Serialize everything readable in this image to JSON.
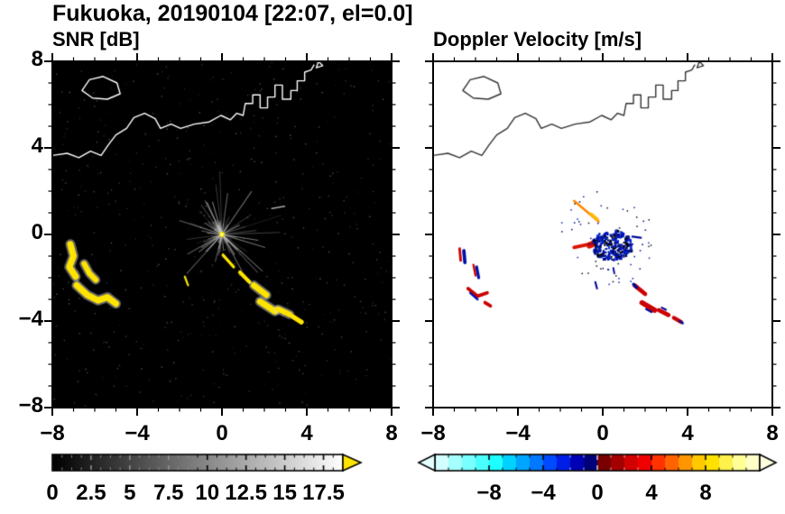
{
  "title": "Fukuoka, 20190104 [22:07, el=0.0]",
  "coastline": {
    "paths": [
      {
        "closed": true,
        "pts": [
          [
            -6.6,
            6.65
          ],
          [
            -6.25,
            7.15
          ],
          [
            -5.6,
            7.3
          ],
          [
            -4.95,
            7.0
          ],
          [
            -4.8,
            6.5
          ],
          [
            -5.4,
            6.25
          ],
          [
            -6.1,
            6.3
          ]
        ]
      },
      {
        "closed": false,
        "pts": [
          [
            -8,
            3.65
          ],
          [
            -7.3,
            3.75
          ],
          [
            -6.75,
            3.55
          ],
          [
            -6.2,
            3.85
          ],
          [
            -5.7,
            3.65
          ],
          [
            -5.35,
            4.15
          ],
          [
            -5.0,
            4.6
          ],
          [
            -4.5,
            4.9
          ],
          [
            -4.15,
            5.4
          ],
          [
            -3.65,
            5.6
          ],
          [
            -3.15,
            5.35
          ],
          [
            -2.9,
            4.9
          ],
          [
            -2.4,
            5.1
          ],
          [
            -1.95,
            4.9
          ],
          [
            -1.3,
            5.1
          ],
          [
            -0.6,
            5.2
          ],
          [
            -0.05,
            5.5
          ],
          [
            0.4,
            5.3
          ],
          [
            0.7,
            5.6
          ],
          [
            1.0,
            5.5
          ],
          [
            1.1,
            6.05
          ],
          [
            1.45,
            6.05
          ],
          [
            1.45,
            6.45
          ],
          [
            1.8,
            6.45
          ],
          [
            1.8,
            5.85
          ],
          [
            2.15,
            5.85
          ],
          [
            2.15,
            6.35
          ],
          [
            2.5,
            6.35
          ],
          [
            2.5,
            6.9
          ],
          [
            2.85,
            6.9
          ],
          [
            2.85,
            6.25
          ],
          [
            3.25,
            6.25
          ],
          [
            3.25,
            6.65
          ],
          [
            3.55,
            6.65
          ],
          [
            3.55,
            7.1
          ],
          [
            3.9,
            7.1
          ],
          [
            3.9,
            7.5
          ],
          [
            4.2,
            7.6
          ],
          [
            4.35,
            7.85
          ]
        ]
      },
      {
        "closed": true,
        "pts": [
          [
            4.45,
            7.7
          ],
          [
            4.75,
            7.8
          ],
          [
            4.55,
            8.0
          ]
        ]
      }
    ]
  },
  "chart_data": [
    {
      "type": "heatmap",
      "title": "SNR [dB]",
      "xlabel": "",
      "ylabel": "",
      "xlim": [
        -8,
        8
      ],
      "ylim": [
        -8,
        8
      ],
      "tick_values": [
        -8,
        -4,
        0,
        4,
        8
      ],
      "xticks": [
        "−8",
        "−4",
        "0",
        "4",
        "8"
      ],
      "y_labels_shown": true,
      "minor_tick_step": 1,
      "background": "#000000",
      "coast_color": "#ffffff",
      "noise": {
        "count": 520,
        "color": "#565656"
      },
      "spokes": {
        "center": [
          0,
          0
        ],
        "count": 85,
        "min_len": 0.4,
        "max_len": 3.1,
        "color": "#c8c8c8"
      },
      "center_dot": {
        "xy": [
          0,
          0
        ],
        "color": "#ffee00"
      },
      "echoes": [
        {
          "pts": [
            [
              -7.15,
              -0.45
            ],
            [
              -7.0,
              -1.0
            ],
            [
              -7.2,
              -1.5
            ],
            [
              -6.9,
              -1.95
            ]
          ],
          "w": 0.3,
          "color": "#ffe400",
          "halo": 1
        },
        {
          "pts": [
            [
              -6.5,
              -1.35
            ],
            [
              -6.25,
              -1.8
            ],
            [
              -5.95,
              -2.1
            ]
          ],
          "w": 0.26,
          "color": "#ffe400",
          "halo": 1
        },
        {
          "pts": [
            [
              -6.85,
              -2.35
            ],
            [
              -6.35,
              -2.8
            ],
            [
              -5.85,
              -3.05
            ],
            [
              -5.4,
              -2.9
            ],
            [
              -5.0,
              -3.2
            ]
          ],
          "w": 0.3,
          "color": "#ffe400",
          "halo": 1
        },
        {
          "pts": [
            [
              -1.75,
              -1.95
            ],
            [
              -1.6,
              -2.35
            ]
          ],
          "w": 0.1,
          "color": "#f0e000"
        },
        {
          "pts": [
            [
              0.05,
              -0.95
            ],
            [
              0.55,
              -1.5
            ]
          ],
          "w": 0.14,
          "color": "#ffe400"
        },
        {
          "pts": [
            [
              0.85,
              -1.75
            ],
            [
              1.3,
              -2.2
            ]
          ],
          "w": 0.18,
          "color": "#ffe400"
        },
        {
          "pts": [
            [
              1.5,
              -2.35
            ],
            [
              2.1,
              -2.8
            ]
          ],
          "w": 0.28,
          "color": "#ffe400",
          "halo": 1
        },
        {
          "pts": [
            [
              1.8,
              -3.1
            ],
            [
              2.5,
              -3.55
            ]
          ],
          "w": 0.3,
          "color": "#ffe400",
          "halo": 1
        },
        {
          "pts": [
            [
              2.65,
              -3.45
            ],
            [
              3.2,
              -3.7
            ]
          ],
          "w": 0.26,
          "color": "#ffe400",
          "halo": 1
        },
        {
          "pts": [
            [
              3.35,
              -3.8
            ],
            [
              3.75,
              -4.05
            ]
          ],
          "w": 0.22,
          "color": "#ffe400"
        },
        {
          "pts": [
            [
              2.35,
              1.2
            ],
            [
              2.95,
              1.3
            ]
          ],
          "w": 0.07,
          "color": "#aaaaaa"
        }
      ],
      "colorbar": {
        "x0_value": 0,
        "x1_value": 18.75,
        "label_values": [
          0,
          2.5,
          5,
          7.5,
          10,
          12.5,
          15,
          17.5
        ],
        "labels": [
          "0",
          "2.5",
          "5",
          "7.5",
          "10",
          "12.5",
          "15",
          "17.5"
        ],
        "minor_step": 0.625,
        "gradient": [
          "#000000",
          "#ffffff"
        ],
        "over_arrow": "#ffe400"
      }
    },
    {
      "type": "heatmap",
      "title": "Doppler Velocity [m/s]",
      "xlabel": "",
      "ylabel": "",
      "xlim": [
        -8,
        8
      ],
      "ylim": [
        -8,
        8
      ],
      "tick_values": [
        -8,
        -4,
        0,
        4,
        8
      ],
      "xticks": [
        "−8",
        "−4",
        "0",
        "4",
        "8"
      ],
      "y_labels_shown": false,
      "minor_tick_step": 1,
      "background": "#ffffff",
      "coast_color": "#333333",
      "cluster": {
        "center": [
          0.4,
          -0.45
        ],
        "rx": 0.95,
        "ry": 0.7,
        "count": 270,
        "dot_colors": [
          "#0011bb",
          "#000d99",
          "#002ad4",
          "#000000",
          "#001177"
        ]
      },
      "scatter": {
        "center": [
          0.2,
          -0.2
        ],
        "r": 2.3,
        "count": 60,
        "dot_colors": [
          "#000080",
          "#111111",
          "#0022bb"
        ]
      },
      "echoes": [
        {
          "pts": [
            [
              -1.35,
              -0.6
            ],
            [
              -0.5,
              -0.42
            ]
          ],
          "w": 0.16,
          "color": "#dd1100"
        },
        {
          "pts": [
            [
              -0.62,
              -0.5
            ],
            [
              -0.38,
              -0.4
            ]
          ],
          "w": 0.3,
          "color": "#dd1100"
        },
        {
          "pts": [
            [
              -1.35,
              1.55
            ],
            [
              -0.2,
              0.6
            ]
          ],
          "w": 0.11,
          "color": "#ff8800"
        },
        {
          "pts": [
            [
              -0.55,
              0.95
            ],
            [
              -0.25,
              0.7
            ]
          ],
          "w": 0.14,
          "color": "#ffbb00"
        },
        {
          "pts": [
            [
              -6.75,
              -0.65
            ],
            [
              -6.7,
              -1.2
            ]
          ],
          "w": 0.12,
          "color": "#cc0000"
        },
        {
          "pts": [
            [
              -6.55,
              -0.75
            ],
            [
              -6.5,
              -1.3
            ]
          ],
          "w": 0.16,
          "color": "#0011aa"
        },
        {
          "pts": [
            [
              -6.1,
              -1.4
            ],
            [
              -6.0,
              -1.9
            ]
          ],
          "w": 0.1,
          "color": "#cc0000"
        },
        {
          "pts": [
            [
              -5.95,
              -1.5
            ],
            [
              -5.85,
              -2.0
            ]
          ],
          "w": 0.14,
          "color": "#0011aa"
        },
        {
          "pts": [
            [
              -6.35,
              -2.5
            ],
            [
              -5.9,
              -2.85
            ],
            [
              -5.45,
              -2.7
            ]
          ],
          "w": 0.16,
          "color": "#cc0000"
        },
        {
          "pts": [
            [
              -6.25,
              -2.7
            ],
            [
              -5.9,
              -3.0
            ]
          ],
          "w": 0.1,
          "color": "#0011aa"
        },
        {
          "pts": [
            [
              -5.55,
              -3.15
            ],
            [
              -5.3,
              -3.3
            ]
          ],
          "w": 0.16,
          "color": "#cc0000"
        },
        {
          "pts": [
            [
              1.5,
              -2.35
            ],
            [
              2.0,
              -2.75
            ]
          ],
          "w": 0.2,
          "color": "#cc0000"
        },
        {
          "pts": [
            [
              1.45,
              -2.3
            ],
            [
              1.6,
              -2.45
            ]
          ],
          "w": 0.14,
          "color": "#000a99"
        },
        {
          "pts": [
            [
              1.85,
              -3.15
            ],
            [
              2.45,
              -3.5
            ]
          ],
          "w": 0.24,
          "color": "#cc0000"
        },
        {
          "pts": [
            [
              2.05,
              -3.45
            ],
            [
              2.3,
              -3.58
            ]
          ],
          "w": 0.1,
          "color": "#000a99"
        },
        {
          "pts": [
            [
              2.65,
              -3.5
            ],
            [
              3.1,
              -3.72
            ]
          ],
          "w": 0.2,
          "color": "#cc0000"
        },
        {
          "pts": [
            [
              2.78,
              -3.38
            ],
            [
              2.98,
              -3.48
            ]
          ],
          "w": 0.09,
          "color": "#000a99"
        },
        {
          "pts": [
            [
              3.35,
              -3.85
            ],
            [
              3.7,
              -4.05
            ]
          ],
          "w": 0.18,
          "color": "#cc0000"
        },
        {
          "pts": [
            [
              3.62,
              -4.0
            ],
            [
              3.78,
              -4.1
            ]
          ],
          "w": 0.1,
          "color": "#000a99"
        },
        {
          "pts": [
            [
              -0.35,
              -2.2
            ],
            [
              -0.27,
              -2.5
            ]
          ],
          "w": 0.09,
          "color": "#000a99"
        },
        {
          "pts": [
            [
              0.5,
              -1.55
            ],
            [
              0.55,
              -1.8
            ]
          ],
          "w": 0.08,
          "color": "#000a99"
        },
        {
          "pts": [
            [
              1.4,
              -0.1
            ],
            [
              1.8,
              -0.15
            ]
          ],
          "w": 0.1,
          "color": "#000a99"
        }
      ],
      "colorbar": {
        "x0_value": -12,
        "x1_value": 12,
        "label_values": [
          -8,
          -4,
          0,
          4,
          8
        ],
        "labels": [
          "−8",
          "−4",
          "0",
          "4",
          "8"
        ],
        "minor_step": 1,
        "segments": [
          "#d2ffff",
          "#a5ffff",
          "#78ffff",
          "#4bffff",
          "#1effff",
          "#00d2ff",
          "#00a5ff",
          "#0078ff",
          "#004bff",
          "#001ee6",
          "#0000b4",
          "#000078",
          "#780000",
          "#a50000",
          "#d20000",
          "#f00000",
          "#ff3200",
          "#ff6400",
          "#ff9600",
          "#ffc800",
          "#ffe100",
          "#fff04b",
          "#ffff96",
          "#ffffc8"
        ],
        "under_arrow": "#e6ffff",
        "over_arrow": "#ffffe0"
      }
    }
  ]
}
